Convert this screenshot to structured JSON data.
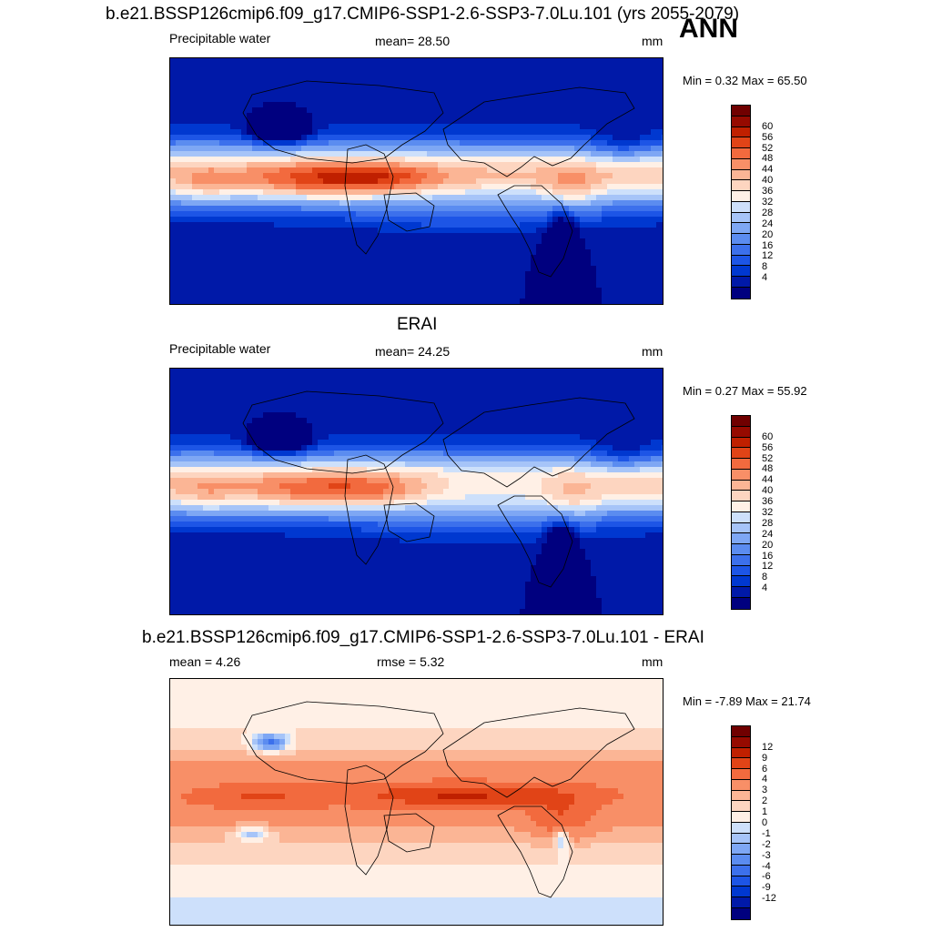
{
  "season": "ANN",
  "panels": [
    {
      "title": "b.e21.BSSP126cmip6.f09_g17.CMIP6-SSP1-2.6-SSP3-7.0Lu.101 (yrs 2055-2079)",
      "left_label": "Precipitable water",
      "center_label": "mean=  28.50",
      "units": "mm",
      "min_max": "Min =   0.32 Max =  65.50",
      "type": "absolute",
      "intensity": 1.0,
      "colorbar": {
        "colors": [
          "#00007f",
          "#0019a8",
          "#0038d0",
          "#1d55e6",
          "#3c70ec",
          "#5b8cf0",
          "#7ea7f4",
          "#a6c4f8",
          "#cde0fb",
          "#fff0e6",
          "#fdd5c0",
          "#fbb595",
          "#f88f67",
          "#f26a3e",
          "#e14417",
          "#c02000",
          "#960a00",
          "#700000"
        ],
        "labels": [
          "60",
          "56",
          "52",
          "48",
          "44",
          "40",
          "36",
          "32",
          "28",
          "24",
          "20",
          "16",
          "12",
          "8",
          "4"
        ]
      }
    },
    {
      "title": "ERAI",
      "left_label": "Precipitable water",
      "center_label": "mean=  24.25",
      "units": "mm",
      "min_max": "Min =   0.27 Max =  55.92",
      "type": "absolute",
      "intensity": 0.78,
      "colorbar": {
        "colors": [
          "#00007f",
          "#0019a8",
          "#0038d0",
          "#1d55e6",
          "#3c70ec",
          "#5b8cf0",
          "#7ea7f4",
          "#a6c4f8",
          "#cde0fb",
          "#fff0e6",
          "#fdd5c0",
          "#fbb595",
          "#f88f67",
          "#f26a3e",
          "#e14417",
          "#c02000",
          "#960a00",
          "#700000"
        ],
        "labels": [
          "60",
          "56",
          "52",
          "48",
          "44",
          "40",
          "36",
          "32",
          "28",
          "24",
          "20",
          "16",
          "12",
          "8",
          "4"
        ]
      }
    },
    {
      "title": "b.e21.BSSP126cmip6.f09_g17.CMIP6-SSP1-2.6-SSP3-7.0Lu.101 - ERAI",
      "left_label": "mean =   4.26",
      "center_label": "rmse =   5.32",
      "units": "mm",
      "min_max": "Min =  -7.89 Max =  21.74",
      "type": "difference",
      "intensity": 1.0,
      "colorbar": {
        "colors": [
          "#00007f",
          "#0019a8",
          "#0038d0",
          "#1d55e6",
          "#3c70ec",
          "#5b8cf0",
          "#7ea7f4",
          "#a6c4f8",
          "#cde0fb",
          "#fff0e6",
          "#fdd5c0",
          "#fbb595",
          "#f88f67",
          "#f26a3e",
          "#e14417",
          "#c02000",
          "#960a00",
          "#700000"
        ],
        "labels": [
          "12",
          "9",
          "6",
          "4",
          "3",
          "2",
          "1",
          "0",
          "-1",
          "-2",
          "-3",
          "-4",
          "-6",
          "-9",
          "-12"
        ]
      }
    }
  ]
}
